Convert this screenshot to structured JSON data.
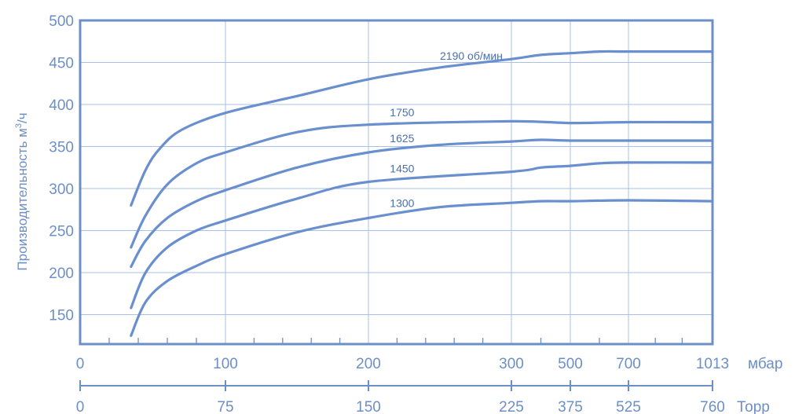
{
  "chart_data": {
    "type": "line",
    "y_axis": {
      "label": "Производительность м",
      "label_sup": "3",
      "label_suffix": "/ч",
      "ticks": [
        150,
        200,
        250,
        300,
        350,
        400,
        450,
        500
      ],
      "ylim": [
        115,
        500
      ]
    },
    "x_axis_mbar": {
      "unit": "мбар",
      "ticks": [
        {
          "value": 0,
          "label": "0"
        },
        {
          "value": 100,
          "label": "100"
        },
        {
          "value": 200,
          "label": "200"
        },
        {
          "value": 300,
          "label": "300"
        },
        {
          "value": 500,
          "label": "500"
        },
        {
          "value": 700,
          "label": "700"
        },
        {
          "value": 1013,
          "label": "1013"
        }
      ]
    },
    "x_axis_torr": {
      "unit": "Торр",
      "ticks": [
        {
          "value": 0,
          "label": "0"
        },
        {
          "value": 75,
          "label": "75"
        },
        {
          "value": 150,
          "label": "150"
        },
        {
          "value": 225,
          "label": "225"
        },
        {
          "value": 375,
          "label": "375"
        },
        {
          "value": 525,
          "label": "525"
        },
        {
          "value": 760,
          "label": "760"
        }
      ]
    },
    "series": [
      {
        "name": "2190",
        "unit": "об/мин",
        "points": [
          [
            35,
            280
          ],
          [
            45,
            322
          ],
          [
            55,
            348
          ],
          [
            70,
            370
          ],
          [
            100,
            390
          ],
          [
            150,
            410
          ],
          [
            200,
            430
          ],
          [
            250,
            444
          ],
          [
            300,
            454
          ],
          [
            400,
            459
          ],
          [
            500,
            461
          ],
          [
            600,
            463
          ],
          [
            700,
            463
          ],
          [
            1013,
            463
          ]
        ]
      },
      {
        "name": "1750",
        "points": [
          [
            35,
            230
          ],
          [
            45,
            268
          ],
          [
            60,
            305
          ],
          [
            80,
            330
          ],
          [
            100,
            343
          ],
          [
            150,
            367
          ],
          [
            200,
            376
          ],
          [
            300,
            380
          ],
          [
            500,
            378
          ],
          [
            700,
            379
          ],
          [
            1013,
            379
          ]
        ]
      },
      {
        "name": "1625",
        "points": [
          [
            35,
            207
          ],
          [
            45,
            238
          ],
          [
            60,
            265
          ],
          [
            80,
            285
          ],
          [
            100,
            298
          ],
          [
            150,
            325
          ],
          [
            200,
            343
          ],
          [
            250,
            352
          ],
          [
            300,
            356
          ],
          [
            400,
            358
          ],
          [
            500,
            357
          ],
          [
            700,
            357
          ],
          [
            1013,
            357
          ]
        ]
      },
      {
        "name": "1450",
        "points": [
          [
            35,
            158
          ],
          [
            45,
            200
          ],
          [
            60,
            230
          ],
          [
            80,
            250
          ],
          [
            100,
            262
          ],
          [
            150,
            288
          ],
          [
            200,
            308
          ],
          [
            300,
            320
          ],
          [
            400,
            325
          ],
          [
            500,
            327
          ],
          [
            600,
            330
          ],
          [
            700,
            331
          ],
          [
            1013,
            331
          ]
        ]
      },
      {
        "name": "1300",
        "points": [
          [
            35,
            125
          ],
          [
            45,
            165
          ],
          [
            60,
            190
          ],
          [
            80,
            208
          ],
          [
            100,
            222
          ],
          [
            150,
            248
          ],
          [
            200,
            265
          ],
          [
            250,
            278
          ],
          [
            300,
            283
          ],
          [
            400,
            285
          ],
          [
            500,
            285
          ],
          [
            700,
            286
          ],
          [
            1013,
            285
          ]
        ]
      }
    ]
  }
}
